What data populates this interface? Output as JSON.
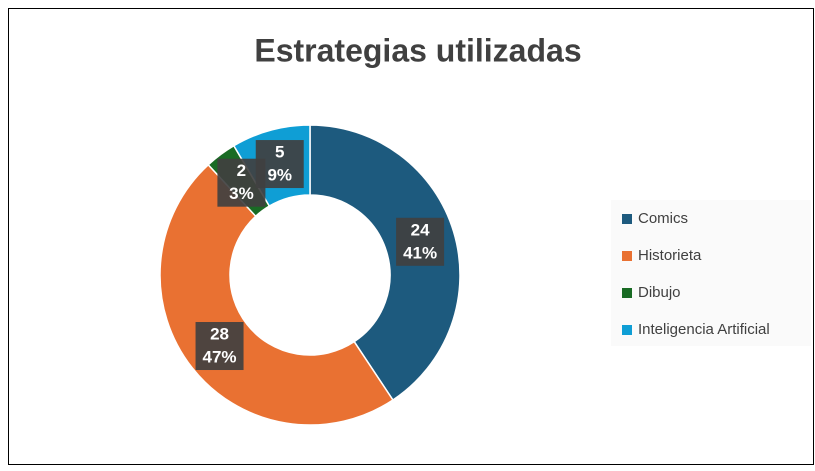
{
  "chart_data": {
    "type": "donut",
    "title": "Estrategias utilizadas",
    "categories": [
      "Comics",
      "Historieta",
      "Dibujo",
      "Inteligencia Artificial"
    ],
    "values": [
      24,
      28,
      2,
      5
    ],
    "percent_labels": [
      "41%",
      "47%",
      "3%",
      "9%"
    ],
    "colors": [
      "#1d5a7e",
      "#e97132",
      "#196b24",
      "#0f9ed5"
    ],
    "legend": "right"
  }
}
